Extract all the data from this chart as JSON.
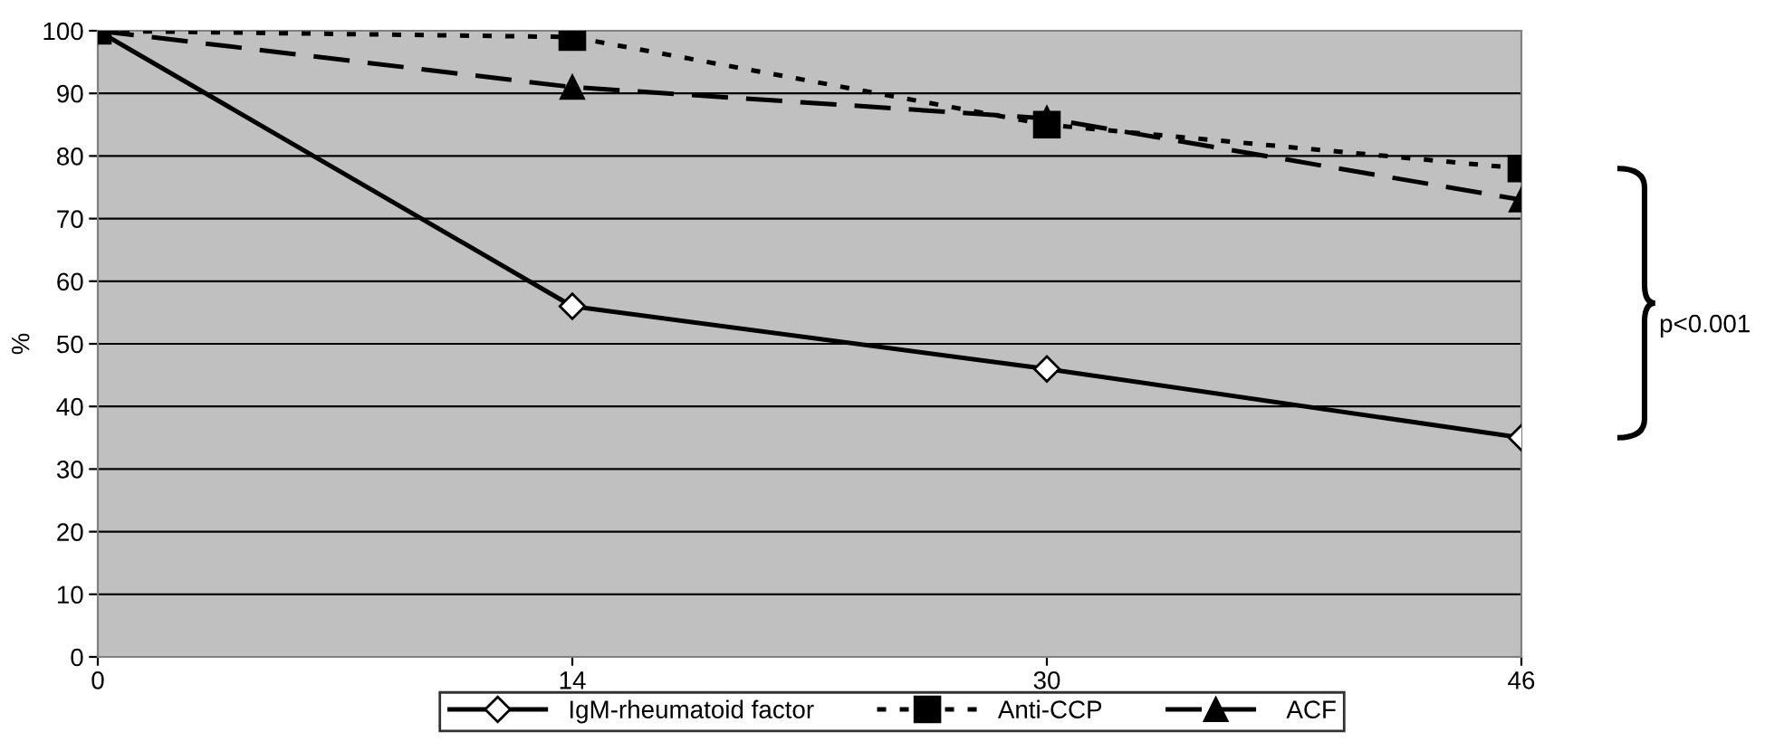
{
  "chart_data": {
    "type": "line",
    "ylabel": "%",
    "categories": [
      "0",
      "14",
      "30",
      "46"
    ],
    "ylim": [
      0,
      100
    ],
    "yticks": [
      0,
      10,
      20,
      30,
      40,
      50,
      60,
      70,
      80,
      90,
      100
    ],
    "grid": "y",
    "legend": "bottom",
    "series": [
      {
        "name": "IgM-rheumatoid factor",
        "color": "#000000",
        "values": [
          100,
          56,
          46,
          35
        ],
        "marker": "diamond",
        "line_style": "solid"
      },
      {
        "name": "Anti-CCP",
        "color": "#000000",
        "values": [
          100,
          99,
          85,
          78
        ],
        "marker": "square",
        "line_style": "dotted"
      },
      {
        "name": "ACF",
        "color": "#000000",
        "values": [
          100,
          91,
          86,
          73
        ],
        "marker": "triangle",
        "line_style": "dashed"
      }
    ],
    "annotations": [
      "p<0.001"
    ]
  }
}
